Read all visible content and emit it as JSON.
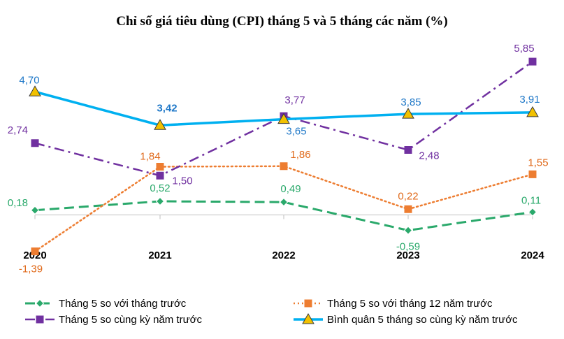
{
  "chart_data": {
    "type": "line",
    "title": "Chỉ số giá tiêu dùng (CPI) tháng 5 và 5 tháng các năm (%)",
    "categories": [
      "2020",
      "2021",
      "2022",
      "2023",
      "2024"
    ],
    "ylim": [
      -1.6,
      6.0
    ],
    "grid": false,
    "legend_position": "bottom",
    "series": [
      {
        "name": "Tháng 5 so với tháng trước",
        "values": [
          0.18,
          0.52,
          0.49,
          -0.59,
          0.11
        ],
        "labels": [
          "0,18",
          "0,52",
          "0,49",
          "-0,59",
          "0,11"
        ],
        "color": "#2aa96b",
        "line_style": "dashed",
        "marker": "diamond"
      },
      {
        "name": "Tháng 5 so với tháng 12 năm trước",
        "values": [
          -1.39,
          1.84,
          1.86,
          0.22,
          1.55
        ],
        "labels": [
          "-1,39",
          "1,84",
          "1,86",
          "0,22",
          "1,55"
        ],
        "color": "#ed7d31",
        "line_style": "dotted",
        "marker": "square"
      },
      {
        "name": "Tháng 5 so cùng kỳ năm trước",
        "values": [
          2.74,
          1.5,
          3.77,
          2.48,
          5.85
        ],
        "labels": [
          "2,74",
          "1,50",
          "3,77",
          "2,48",
          "5,85"
        ],
        "color": "#7030a0",
        "line_style": "dash-dot",
        "marker": "square"
      },
      {
        "name": "Bình quân 5 tháng so cùng kỳ năm trước",
        "values": [
          4.7,
          3.42,
          3.65,
          3.85,
          3.91
        ],
        "labels": [
          "4,70",
          "3,42",
          "3,65",
          "3,85",
          "3,91"
        ],
        "color": "#00b0f0",
        "line_style": "solid",
        "marker": "triangle"
      }
    ]
  }
}
